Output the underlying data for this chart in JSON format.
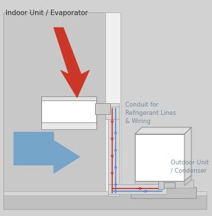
{
  "bg_color": "#d2d2d2",
  "wall_side_color": "#c8c8c8",
  "wall_front_color": "#f0f0f0",
  "floor_color": "#c0c0c0",
  "unit_color": "#ffffff",
  "unit_edge": "#888888",
  "conduit_color": "#d8d8d8",
  "conduit_edge": "#aaaaaa",
  "red_line": "#cc2222",
  "blue_line": "#4488cc",
  "red_arrow_color": "#cc2211",
  "blue_arrow_color": "#5599cc",
  "title_text": "Indoor Unit / Evaporator",
  "conduit_label": "Conduit for\nRefrigerant Lines\n& Wiring",
  "outdoor_label": "Outdoor Unit\n/ Condenser",
  "label_color": "#778899",
  "title_color": "#333333"
}
